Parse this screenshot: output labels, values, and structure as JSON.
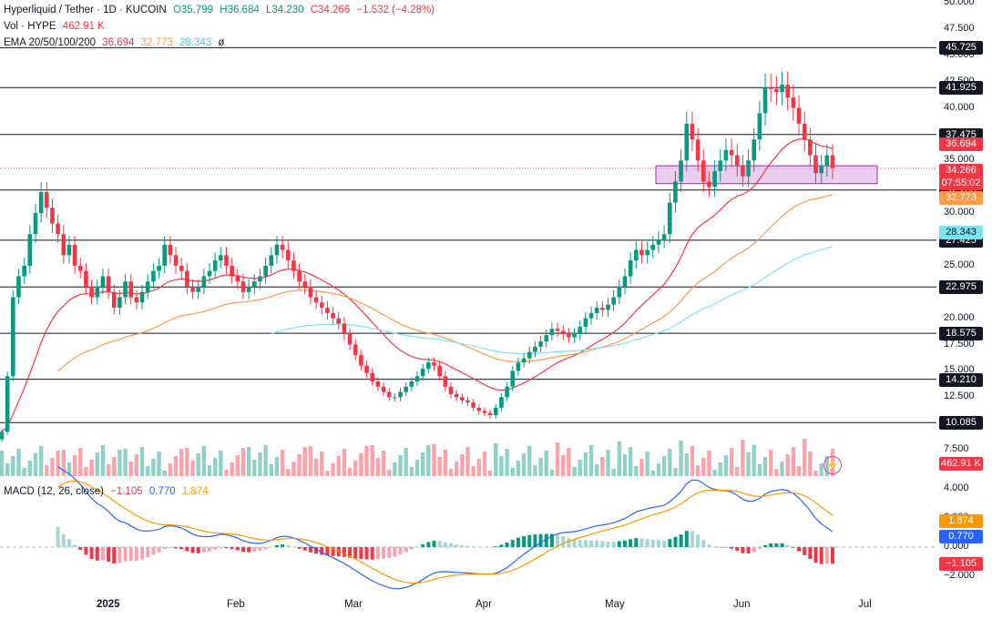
{
  "header": {
    "symbol": "Hyperliquid / Tether · 1D · KUCOIN",
    "ohlc": {
      "o": "O35.799",
      "h": "H36.684",
      "l": "L34.230",
      "c": "C34.266",
      "chg": "−1.532 (−4.28%)"
    },
    "vol_label": "Vol · HYPE",
    "vol_value": "462.91 K",
    "ema_label": "EMA 20/50/100/200",
    "ema20": "36.694",
    "ema50": "32.773",
    "ema100": "28.343",
    "ema200": "ø",
    "macd_label": "MACD (12, 26, close)",
    "macd_hist": "−1.105",
    "macd_line": "0.770",
    "macd_signal": "1.874"
  },
  "colors": {
    "up": "#089981",
    "down": "#f23645",
    "ema20": "#f23645",
    "ema50": "#ff9a4a",
    "ema100": "#7ee3f0",
    "macd": "#2962ff",
    "signal": "#ff9800",
    "zone": "#e1bee7"
  },
  "price_axis": {
    "ticks": [
      "50.000",
      "47.500",
      "45.000",
      "42.500",
      "40.000",
      "37.500",
      "35.000",
      "32.500",
      "30.000",
      "27.500",
      "25.000",
      "22.500",
      "20.000",
      "17.500",
      "15.000",
      "12.500",
      "10.000",
      "7.500"
    ],
    "ylim": [
      5,
      50
    ]
  },
  "levels": [
    "45.725",
    "41.925",
    "37.475",
    "32.200",
    "27.425",
    "22.975",
    "18.575",
    "14.210",
    "10.085"
  ],
  "price_tags": {
    "last": "34.266",
    "countdown": "07:55:02",
    "ema20": "36.694",
    "ema50": "32.773",
    "ema100": "28.343",
    "volume": "462.91 K"
  },
  "macd_axis": {
    "ticks": [
      "4.000",
      "2.000",
      "0.000",
      "−2.000"
    ],
    "tags": {
      "signal": "1.874",
      "macd": "0.770",
      "hist": "−1.105"
    }
  },
  "time_axis": [
    "2025",
    "Feb",
    "Mar",
    "Apr",
    "May",
    "Jun",
    "Jul"
  ],
  "chart_data": {
    "type": "candlestick",
    "title": "Hyperliquid / Tether · 1D · KUCOIN",
    "close_path": [
      9.2,
      14.5,
      22,
      24,
      25,
      28,
      30,
      32,
      30.5,
      29,
      28,
      26,
      27,
      25,
      24.5,
      23,
      22,
      23,
      24,
      22.5,
      21,
      22,
      23.5,
      22,
      21.5,
      22.5,
      23.5,
      24.5,
      25,
      27,
      26,
      25,
      24.5,
      23,
      22.5,
      23,
      24,
      24.5,
      25.5,
      26,
      25,
      24,
      23.5,
      22.5,
      23,
      23.5,
      24,
      25,
      26,
      27,
      26.5,
      25.5,
      24.5,
      23.5,
      23,
      22,
      21.5,
      21,
      20.5,
      20,
      19.5,
      18.5,
      17.5,
      16.5,
      15.5,
      14.8,
      14,
      13.5,
      13,
      12.5,
      12.5,
      13,
      13.5,
      14,
      14.5,
      15.2,
      15.8,
      15.5,
      14.5,
      13.5,
      12.8,
      12.5,
      12.2,
      12,
      11.5,
      11.2,
      11,
      10.8,
      11.5,
      12.5,
      13.5,
      15,
      15.8,
      16.2,
      16.8,
      17.3,
      17.8,
      18.4,
      19,
      18.8,
      18.5,
      18.2,
      18.5,
      19.2,
      20,
      20.5,
      21,
      20.8,
      21.3,
      22,
      23,
      24,
      25.5,
      26.5,
      26,
      26.5,
      27,
      27.5,
      28,
      31,
      33,
      35,
      38.5,
      37,
      35,
      33,
      32.5,
      34,
      35,
      36,
      35.5,
      34.5,
      33.5,
      35,
      37,
      39.5,
      42,
      41.8,
      41.5,
      42.2,
      41,
      40,
      38.5,
      37,
      35.5,
      33.8,
      34.5,
      35.5,
      34.266
    ],
    "ema20_end": 36.694,
    "ema50_end": 32.773,
    "ema100_end": 28.343,
    "macd_end": 0.77,
    "signal_end": 1.874,
    "hist_end": -1.105,
    "support_zone": [
      32.8,
      34.5
    ]
  }
}
